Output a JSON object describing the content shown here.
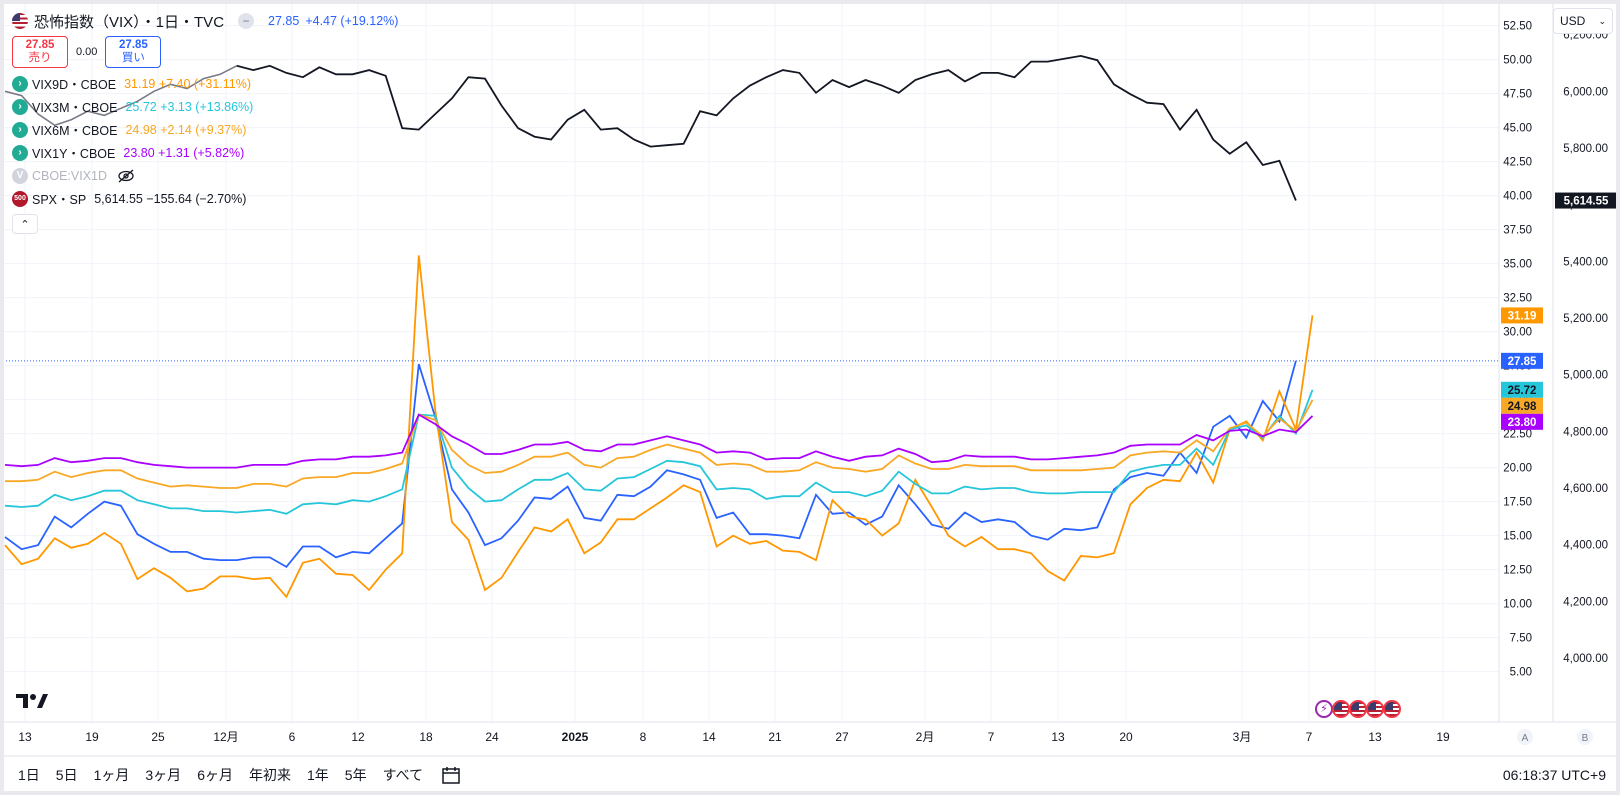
{
  "header": {
    "title": "恐怖指数（VIX）・1日・TVC",
    "last": "27.85",
    "change": "+4.47 (+19.12%)",
    "sell_price": "27.85",
    "sell_label": "売り",
    "spread": "0.00",
    "buy_price": "27.85",
    "buy_label": "買い"
  },
  "series_legend": [
    {
      "name": "VIX9D・CBOE",
      "values": "31.19 +7.40 (+31.11%)",
      "color": "#ff9800",
      "icon": "arrow-icon"
    },
    {
      "name": "VIX3M・CBOE",
      "values": "25.72 +3.13 (+13.86%)",
      "color": "#26c6da",
      "icon": "arrow-icon"
    },
    {
      "name": "VIX6M・CBOE",
      "values": "24.98 +2.14 (+9.37%)",
      "color": "#f9a825",
      "icon": "arrow-icon"
    },
    {
      "name": "VIX1Y・CBOE",
      "values": "23.80 +1.31 (+5.82%)",
      "color": "#aa00ff",
      "icon": "arrow-icon"
    },
    {
      "name": "CBOE:VIX1D",
      "values": "",
      "color": "#b2b5be",
      "icon": "eye-off-icon",
      "hidden": true
    },
    {
      "name": "SPX・SP",
      "values": "5,614.55 −155.64 (−2.70%)",
      "color": "#131722",
      "icon": "500"
    }
  ],
  "currency": "USD",
  "scale_buttons": {
    "auto": "A",
    "b": "B"
  },
  "time_ranges": [
    "1日",
    "5日",
    "1ヶ月",
    "3ヶ月",
    "6ヶ月",
    "年初来",
    "1年",
    "5年",
    "すべて"
  ],
  "clock": "06:18:37 UTC+9",
  "chart_data": {
    "type": "line",
    "x_tick_labels": [
      "13",
      "19",
      "25",
      "12月",
      "6",
      "12",
      "18",
      "24",
      "2025",
      "8",
      "14",
      "21",
      "27",
      "2月",
      "7",
      "13",
      "20",
      "3月",
      "7",
      "13",
      "19"
    ],
    "left_axis": {
      "ticks": [
        "52.50",
        "50.00",
        "47.50",
        "45.00",
        "42.50",
        "40.00",
        "37.50",
        "35.00",
        "32.50",
        "30.00",
        "27.50",
        "25.00",
        "22.50",
        "20.00",
        "17.50",
        "15.00",
        "12.50",
        "10.00",
        "7.50",
        "5.00"
      ],
      "ylim": [
        3.5,
        53.5
      ]
    },
    "right_axis": {
      "ticks": [
        "6,200.00",
        "6,000.00",
        "5,800.00",
        "5,600.00",
        "5,400.00",
        "5,200.00",
        "5,000.00",
        "4,800.00",
        "4,600.00",
        "4,400.00",
        "4,200.00",
        "4,000.00"
      ],
      "ylim": [
        3880,
        6280
      ]
    },
    "price_labels": [
      {
        "text": "5,614.55",
        "value": 5614.55,
        "axis": "right",
        "color": "#131722"
      },
      {
        "text": "31.19",
        "value": 31.19,
        "axis": "left",
        "color": "#ff9800"
      },
      {
        "text": "27.85",
        "value": 27.85,
        "axis": "left",
        "color": "#2962ff"
      },
      {
        "text": "25.72",
        "value": 25.72,
        "axis": "left",
        "color": "#26c6da"
      },
      {
        "text": "24.98",
        "value": 24.98,
        "axis": "left",
        "color": "#f9a825"
      },
      {
        "text": "23.80",
        "value": 23.8,
        "axis": "left",
        "color": "#aa00ff"
      }
    ],
    "current_line": 27.85,
    "series": [
      {
        "name": "VIX",
        "axis": "left",
        "color": "#2962ff",
        "values": [
          14.9,
          14.0,
          14.3,
          16.4,
          15.6,
          16.6,
          17.5,
          17.2,
          15.1,
          14.4,
          13.8,
          13.8,
          13.3,
          13.2,
          13.2,
          13.4,
          13.4,
          12.7,
          14.2,
          14.2,
          13.4,
          13.8,
          13.7,
          14.8,
          15.9,
          27.6,
          23.7,
          18.4,
          16.7,
          14.3,
          14.8,
          16.1,
          17.8,
          17.7,
          18.6,
          16.3,
          16.1,
          18.0,
          17.9,
          18.6,
          19.8,
          19.5,
          19.1,
          16.3,
          16.7,
          15.1,
          15.1,
          15.0,
          14.8,
          18.0,
          16.6,
          16.7,
          15.8,
          16.4,
          18.7,
          17.3,
          15.8,
          15.5,
          16.7,
          16.0,
          16.2,
          16.0,
          15.0,
          14.7,
          15.5,
          15.4,
          15.6,
          18.4,
          19.3,
          19.6,
          19.4,
          21.1,
          19.6,
          23.0,
          23.8,
          22.2,
          24.9,
          23.4,
          27.85
        ]
      },
      {
        "name": "VIX9D",
        "axis": "left",
        "color": "#ff9800",
        "values": [
          14.3,
          12.9,
          13.3,
          14.8,
          14.1,
          14.4,
          15.2,
          14.4,
          11.8,
          12.6,
          11.9,
          10.9,
          11.1,
          12.0,
          12.0,
          11.8,
          11.9,
          10.5,
          13.0,
          13.3,
          12.2,
          12.1,
          11.0,
          12.5,
          13.7,
          35.6,
          24.2,
          16.0,
          14.7,
          11.0,
          11.9,
          13.8,
          15.6,
          15.3,
          16.2,
          13.7,
          14.5,
          16.2,
          16.2,
          17.0,
          17.8,
          18.7,
          18.2,
          14.2,
          15.0,
          14.4,
          14.6,
          13.9,
          13.8,
          13.2,
          17.6,
          16.4,
          16.2,
          15.0,
          15.9,
          19.1,
          17.1,
          15.0,
          14.2,
          14.9,
          14.0,
          14.0,
          13.7,
          12.4,
          11.7,
          13.5,
          13.4,
          13.7,
          17.3,
          18.5,
          19.1,
          19.0,
          21.1,
          18.9,
          22.8,
          23.4,
          22.0,
          25.6,
          22.8,
          31.19
        ]
      },
      {
        "name": "VIX3M",
        "axis": "left",
        "color": "#26c6da",
        "values": [
          17.2,
          17.1,
          17.2,
          18.0,
          17.6,
          17.9,
          18.3,
          18.3,
          17.6,
          17.3,
          17.0,
          17.0,
          16.8,
          16.8,
          16.7,
          16.8,
          16.9,
          16.6,
          17.3,
          17.4,
          17.3,
          17.6,
          17.5,
          17.9,
          18.4,
          23.9,
          23.8,
          20.0,
          18.5,
          17.5,
          17.6,
          18.4,
          19.1,
          19.1,
          19.6,
          18.4,
          18.3,
          19.2,
          19.3,
          19.9,
          20.5,
          20.4,
          20.1,
          18.4,
          18.5,
          18.4,
          17.7,
          17.9,
          17.9,
          18.9,
          18.2,
          18.2,
          17.9,
          18.3,
          19.7,
          18.8,
          18.1,
          18.1,
          18.6,
          18.4,
          18.5,
          18.5,
          18.2,
          18.1,
          18.1,
          18.2,
          18.2,
          18.2,
          19.7,
          20.0,
          20.2,
          20.2,
          21.4,
          20.2,
          22.8,
          23.1,
          22.2,
          23.8,
          22.5,
          25.72
        ]
      },
      {
        "name": "VIX6M",
        "axis": "left",
        "color": "#f9a825",
        "values": [
          19.0,
          19.0,
          19.1,
          19.7,
          19.3,
          19.6,
          19.8,
          19.8,
          19.2,
          18.9,
          18.6,
          18.7,
          18.6,
          18.5,
          18.5,
          18.8,
          18.8,
          18.6,
          19.2,
          19.3,
          19.3,
          19.6,
          19.6,
          19.9,
          20.3,
          23.9,
          23.5,
          21.3,
          20.2,
          19.6,
          19.7,
          20.2,
          20.8,
          20.8,
          21.1,
          20.2,
          20.0,
          20.7,
          20.8,
          21.3,
          21.7,
          21.4,
          21.1,
          20.2,
          20.3,
          20.2,
          19.7,
          19.7,
          19.8,
          20.4,
          20.0,
          19.9,
          19.7,
          19.9,
          20.9,
          20.3,
          19.9,
          19.9,
          20.2,
          20.1,
          20.1,
          20.1,
          19.8,
          19.8,
          19.8,
          19.8,
          19.9,
          20.0,
          20.9,
          21.1,
          21.2,
          21.1,
          22.0,
          21.2,
          22.9,
          23.3,
          22.3,
          23.6,
          22.7,
          24.98
        ]
      },
      {
        "name": "VIX1Y",
        "axis": "left",
        "color": "#aa00ff",
        "values": [
          20.2,
          20.1,
          20.2,
          20.7,
          20.4,
          20.5,
          20.7,
          20.7,
          20.4,
          20.2,
          20.1,
          20.0,
          20.0,
          20.0,
          20.0,
          20.2,
          20.2,
          20.2,
          20.5,
          20.6,
          20.6,
          20.8,
          20.8,
          20.9,
          21.1,
          23.9,
          23.2,
          22.3,
          21.7,
          21.0,
          21.0,
          21.3,
          21.7,
          21.7,
          21.9,
          21.3,
          21.2,
          21.7,
          21.7,
          22.0,
          22.3,
          22.0,
          21.7,
          21.1,
          21.2,
          21.1,
          20.6,
          20.7,
          20.7,
          21.2,
          20.8,
          20.5,
          20.8,
          20.9,
          21.4,
          21.0,
          20.4,
          20.5,
          20.9,
          20.8,
          20.8,
          20.8,
          20.6,
          20.6,
          20.7,
          20.8,
          20.9,
          21.1,
          21.6,
          21.7,
          21.7,
          21.7,
          22.4,
          22.0,
          22.7,
          22.8,
          22.3,
          22.8,
          22.6,
          23.8
        ]
      },
      {
        "name": "SPX",
        "axis": "right",
        "color": "#131722",
        "partial_gray_until_index": 14,
        "values": [
          6000,
          5985,
          5920,
          5880,
          5900,
          5930,
          5915,
          5940,
          5965,
          6000,
          6025,
          6010,
          6045,
          6060,
          6090,
          6075,
          6090,
          6065,
          6050,
          6085,
          6060,
          6060,
          6075,
          6055,
          5870,
          5865,
          5920,
          5975,
          6050,
          6045,
          5950,
          5870,
          5840,
          5830,
          5900,
          5935,
          5865,
          5870,
          5830,
          5805,
          5810,
          5815,
          5930,
          5915,
          5975,
          6020,
          6050,
          6075,
          6065,
          5995,
          6040,
          6015,
          6040,
          6020,
          5995,
          6040,
          6060,
          6075,
          6035,
          6065,
          6065,
          6050,
          6105,
          6105,
          6115,
          6125,
          6110,
          6025,
          5990,
          5960,
          5955,
          5865,
          5935,
          5830,
          5780,
          5820,
          5740,
          5755,
          5614.55
        ]
      }
    ]
  }
}
